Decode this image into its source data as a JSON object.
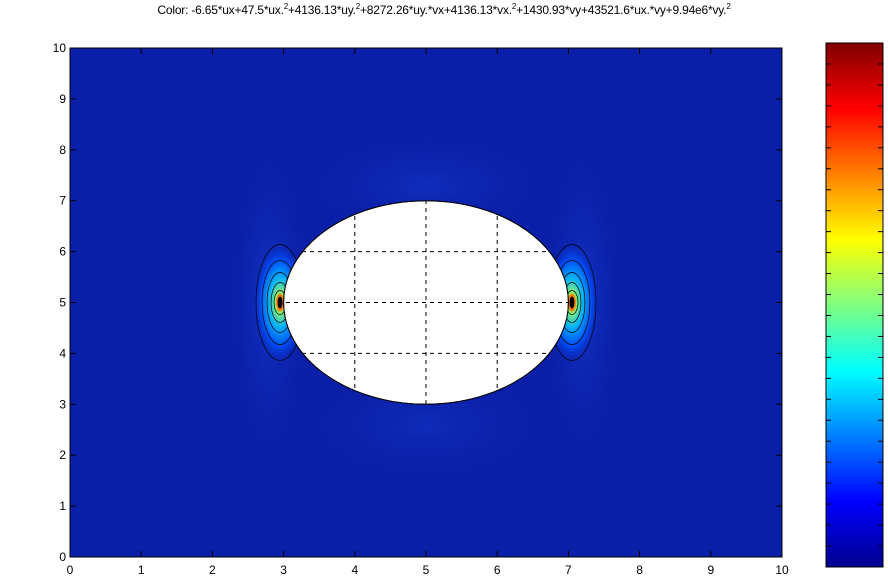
{
  "chart_data": {
    "type": "heatmap",
    "title": {
      "prefix": "Color: ",
      "terms": [
        {
          "text": "-6.65*ux+47.5*ux.",
          "sup": "2"
        },
        {
          "text": "+4136.13*uy.",
          "sup": "2"
        },
        {
          "text": "+8272.26*uy.*vx+4136.13*vx.",
          "sup": "2"
        },
        {
          "text": "+1430.93*vy+43521.6*ux.*vy+9.94e6*vy.",
          "sup": "2"
        }
      ]
    },
    "xlabel": "",
    "ylabel": "",
    "xlim": [
      0,
      10
    ],
    "ylim": [
      0,
      10
    ],
    "x_ticks": [
      "0",
      "1",
      "2",
      "3",
      "4",
      "5",
      "6",
      "7",
      "8",
      "9",
      "10"
    ],
    "y_ticks": [
      "0",
      "1",
      "2",
      "3",
      "4",
      "5",
      "6",
      "7",
      "8",
      "9",
      "10"
    ],
    "grid": "dashed",
    "domain": {
      "x": [
        0,
        10
      ],
      "y": [
        0,
        10
      ]
    },
    "hole": {
      "shape": "circle",
      "center": [
        5,
        5
      ],
      "radius": 2
    },
    "field_description": "Low values over most of the domain, sharp peaks at the left and right edges of the circular hole near (3,5) and (7,5)",
    "hotspots": [
      {
        "x": 2.95,
        "y": 5.0,
        "level": 1.0
      },
      {
        "x": 7.05,
        "y": 5.0,
        "level": 1.0
      }
    ],
    "contour_lines": true,
    "colormap": "jet",
    "colorbar": {
      "position": "right",
      "tick_count": 25
    },
    "colors": {
      "background_field": "#0a1fa8",
      "colormap_stops": [
        "#00008f",
        "#0000ff",
        "#0080ff",
        "#00ffff",
        "#80ff80",
        "#ffff00",
        "#ff8000",
        "#ff0000",
        "#800000"
      ]
    }
  }
}
